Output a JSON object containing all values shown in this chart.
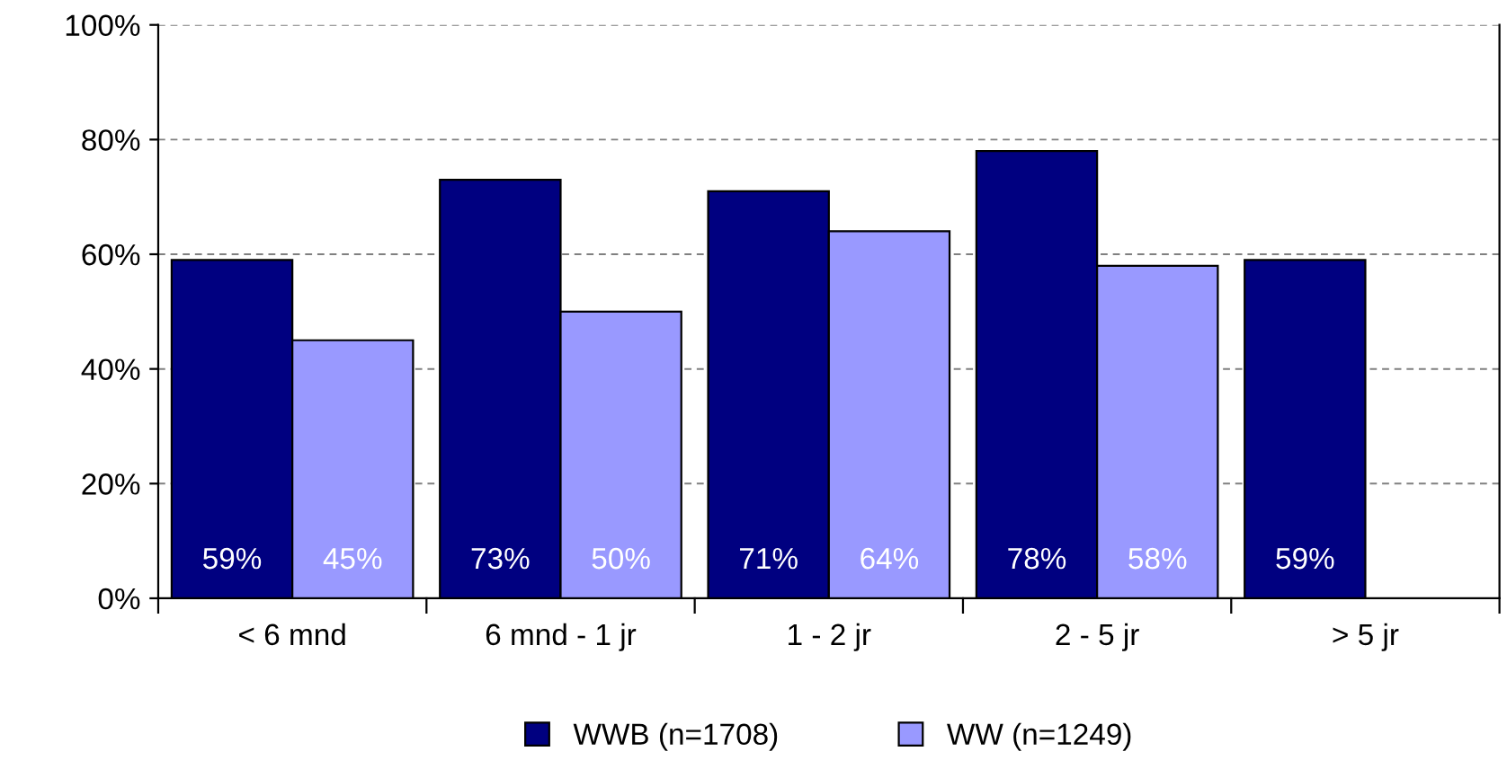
{
  "chart_data": {
    "type": "bar",
    "categories": [
      "< 6 mnd",
      "6 mnd - 1 jr",
      "1 - 2 jr",
      "2 - 5 jr",
      "> 5 jr"
    ],
    "series": [
      {
        "name": "WWB (n=1708)",
        "color": "#000080",
        "values": [
          59,
          73,
          71,
          78,
          59
        ],
        "value_labels": [
          "59%",
          "73%",
          "71%",
          "78%",
          "59%"
        ]
      },
      {
        "name": "WW (n=1249)",
        "color": "#9999ff",
        "values": [
          45,
          50,
          64,
          58,
          null
        ],
        "value_labels": [
          "45%",
          "50%",
          "64%",
          "58%",
          null
        ]
      }
    ],
    "ylim": [
      0,
      100
    ],
    "yticks": [
      {
        "value": 0,
        "label": "0%"
      },
      {
        "value": 20,
        "label": "20%"
      },
      {
        "value": 40,
        "label": "40%"
      },
      {
        "value": 60,
        "label": "60%"
      },
      {
        "value": 80,
        "label": "80%"
      },
      {
        "value": 100,
        "label": "100%"
      }
    ],
    "grid": "y",
    "legend": "bottom"
  }
}
